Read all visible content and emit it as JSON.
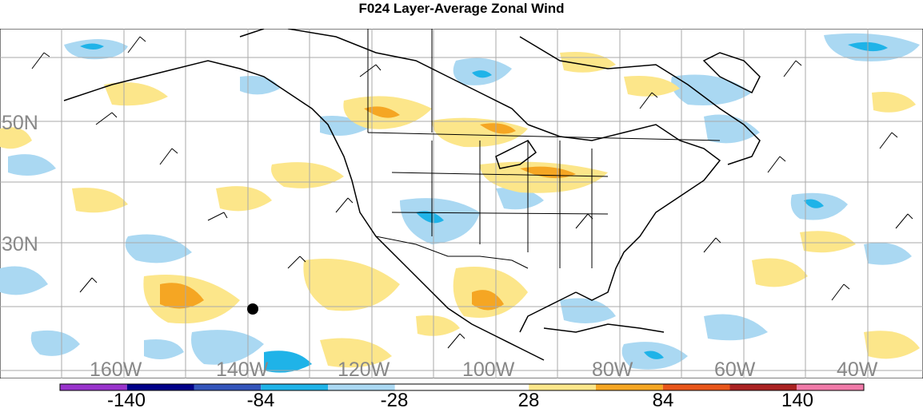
{
  "title": "F024 Layer-Average Zonal Wind",
  "map": {
    "lat_labels": [
      "50N",
      "30N"
    ],
    "lon_labels": [
      "160W",
      "140W",
      "120W",
      "100W",
      "80W",
      "60W",
      "40W"
    ]
  },
  "colorbar": {
    "colors": [
      "#9933cc",
      "#000088",
      "#3355bb",
      "#1fb3e8",
      "#aad8f2",
      "#ffffff",
      "#ffffff",
      "#fce68a",
      "#f5a623",
      "#e8561a",
      "#aa2222",
      "#f07aa8"
    ],
    "tick_labels": [
      "-140",
      "-84",
      "-28",
      "28",
      "84",
      "140"
    ]
  },
  "colors": {
    "land_border": "#000000",
    "grid": "#aaaaaa",
    "blue_light": "#aad8f2",
    "blue_mid": "#1fb3e8",
    "yellow": "#fce68a",
    "orange": "#f5a623"
  }
}
